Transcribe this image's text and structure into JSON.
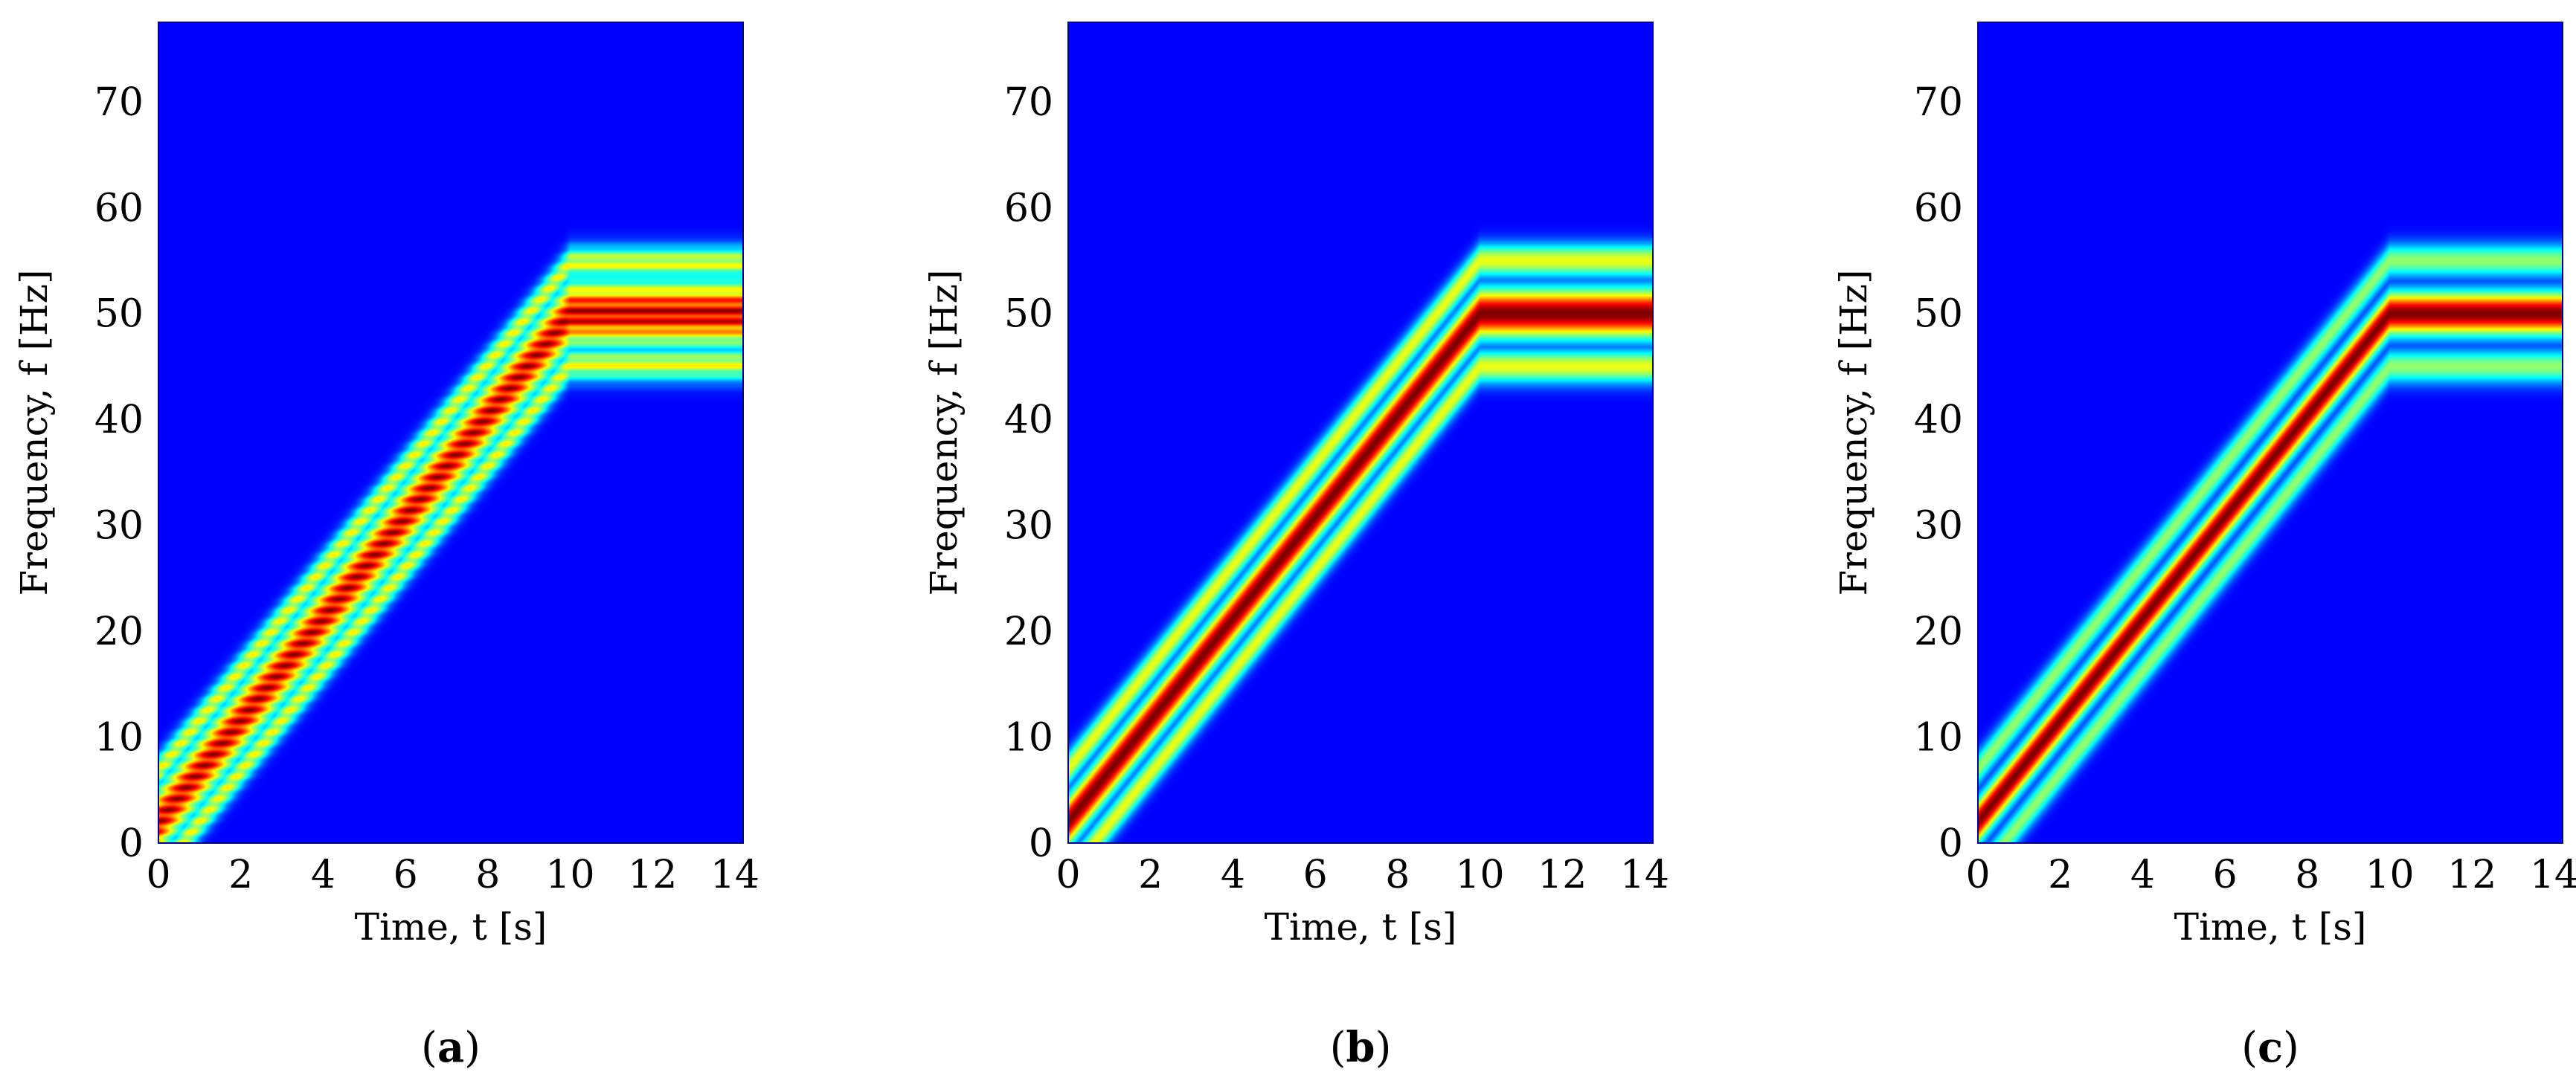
{
  "chart_data": [
    {
      "type": "heatmap",
      "caption": "(a)",
      "caption_letter": "a",
      "xlabel": "Time, t [s]",
      "ylabel": "Frequency, f [Hz]",
      "xlim": [
        0,
        14.2
      ],
      "ylim": [
        0,
        77.5
      ],
      "xticks": [
        0,
        2,
        4,
        6,
        8,
        10,
        12,
        14
      ],
      "yticks": [
        0,
        10,
        20,
        30,
        40,
        50,
        60,
        70
      ],
      "colormap": "jet",
      "background": "#00008b",
      "ridge": {
        "time": [
          0,
          10,
          14.2
        ],
        "frequency": [
          2,
          50,
          50
        ]
      },
      "main_lobe_halfwidth_hz": 2.2,
      "side_lobes": [
        {
          "offset_hz": 4.8,
          "intensity": 0.6
        },
        {
          "offset_hz": -4.8,
          "intensity": 0.6
        }
      ],
      "interference_ripple": true
    },
    {
      "type": "heatmap",
      "caption": "(b)",
      "caption_letter": "b",
      "xlabel": "Time, t [s]",
      "ylabel": "Frequency, f [Hz]",
      "xlim": [
        0,
        14.2
      ],
      "ylim": [
        0,
        77.5
      ],
      "xticks": [
        0,
        2,
        4,
        6,
        8,
        10,
        12,
        14
      ],
      "yticks": [
        0,
        10,
        20,
        30,
        40,
        50,
        60,
        70
      ],
      "colormap": "jet",
      "background": "#00008b",
      "ridge": {
        "time": [
          0,
          10,
          14.2
        ],
        "frequency": [
          2,
          50,
          50
        ]
      },
      "main_lobe_halfwidth_hz": 1.6,
      "side_lobes": [
        {
          "offset_hz": 5.0,
          "intensity": 0.55
        },
        {
          "offset_hz": -5.0,
          "intensity": 0.55
        }
      ],
      "interference_ripple": false
    },
    {
      "type": "heatmap",
      "caption": "(c)",
      "caption_letter": "c",
      "xlabel": "Time, t [s]",
      "ylabel": "Frequency, f [Hz]",
      "xlim": [
        0,
        14.2
      ],
      "ylim": [
        0,
        77.5
      ],
      "xticks": [
        0,
        2,
        4,
        6,
        8,
        10,
        12,
        14
      ],
      "yticks": [
        0,
        10,
        20,
        30,
        40,
        50,
        60,
        70
      ],
      "colormap": "jet",
      "background": "#00008b",
      "ridge": {
        "time": [
          0,
          10,
          14.2
        ],
        "frequency": [
          2,
          50,
          50
        ]
      },
      "main_lobe_halfwidth_hz": 1.4,
      "side_lobes": [
        {
          "offset_hz": 5.0,
          "intensity": 0.45
        },
        {
          "offset_hz": -5.0,
          "intensity": 0.45
        }
      ],
      "interference_ripple": false
    }
  ]
}
